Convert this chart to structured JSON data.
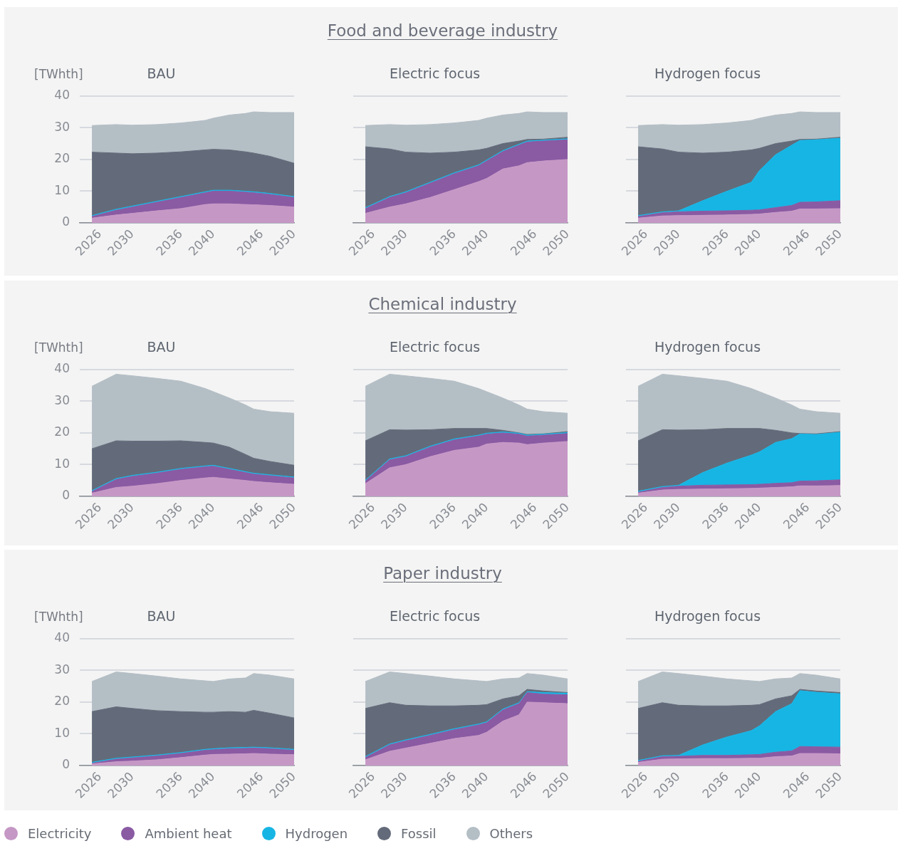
{
  "chart_data": [
    {
      "type": "area",
      "subtitle": "BAU",
      "ylabel": "[TWhth]",
      "stacked": true,
      "grid": "y",
      "legend": "bottom",
      "xlim": [
        2023.5,
        2050
      ],
      "xticks": [
        2026,
        2030,
        2036,
        2040,
        2046,
        2050
      ],
      "ylim": [
        0,
        40
      ],
      "yticks": [
        0,
        10,
        20,
        30,
        40
      ],
      "x": [
        2025,
        2028,
        2030,
        2033,
        2036,
        2039,
        2040,
        2042,
        2044,
        2045,
        2047,
        2050
      ],
      "series": [
        {
          "name": "Electricity",
          "color": "#c597c5",
          "values": [
            1.5,
            2.5,
            3,
            3.8,
            4.5,
            5.8,
            6,
            6,
            5.8,
            5.7,
            5.5,
            5
          ]
        },
        {
          "name": "Ambient heat",
          "color": "#8a5aa3",
          "values": [
            0.5,
            1.5,
            2,
            2.7,
            3.5,
            3.7,
            4,
            4,
            3.9,
            3.8,
            3.5,
            3
          ]
        },
        {
          "name": "Hydrogen",
          "color": "#17b5e4",
          "values": [
            0.3,
            0.3,
            0.3,
            0.3,
            0.3,
            0.3,
            0.3,
            0.3,
            0.3,
            0.3,
            0.3,
            0.3
          ]
        },
        {
          "name": "Fossil",
          "color": "#636b7a",
          "values": [
            20,
            17.7,
            16.5,
            15.2,
            14.1,
            13.2,
            12.9,
            12.7,
            12.4,
            12.2,
            11.7,
            10.5
          ]
        },
        {
          "name": "Others",
          "color": "#b4bec5",
          "values": [
            8.4,
            9,
            9,
            9,
            9.1,
            9.3,
            9.8,
            11,
            12.1,
            13,
            13.8,
            16
          ]
        }
      ]
    },
    {
      "type": "area",
      "title": "Food and beverage industry",
      "subtitle": "Electric focus",
      "stacked": true,
      "grid": "y",
      "tick_labels": "x",
      "xlim": [
        2023.5,
        2050
      ],
      "xticks": [
        2026,
        2030,
        2036,
        2040,
        2046,
        2050
      ],
      "ylim": [
        0,
        40
      ],
      "yticks": [
        0,
        10,
        20,
        30,
        40
      ],
      "x": [
        2025,
        2028,
        2030,
        2033,
        2036,
        2039,
        2040,
        2042,
        2044,
        2045,
        2047,
        2050
      ],
      "series": [
        {
          "color": "#c597c5",
          "values": [
            3,
            5,
            6,
            8,
            10.5,
            13,
            14,
            17,
            18,
            19,
            19.5,
            20
          ]
        },
        {
          "color": "#8a5aa3",
          "values": [
            1.5,
            3,
            3.5,
            4.5,
            5,
            5,
            5.5,
            5.5,
            6.5,
            6.5,
            6.3,
            6.2
          ]
        },
        {
          "color": "#17b5e4",
          "values": [
            0.3,
            0.3,
            0.3,
            0.3,
            0.3,
            0.3,
            0.3,
            0.3,
            0.3,
            0.3,
            0.3,
            0.3
          ]
        },
        {
          "color": "#636b7a",
          "values": [
            19.2,
            15,
            12.5,
            9.2,
            6.5,
            4.7,
            3.7,
            2.2,
            1,
            0.5,
            0.3,
            0.5
          ]
        },
        {
          "color": "#b4bec5",
          "values": [
            6.7,
            7.7,
            8.5,
            9,
            9.2,
            9.3,
            9.5,
            9,
            8.7,
            8.7,
            8.4,
            7.8
          ]
        }
      ]
    },
    {
      "type": "area",
      "subtitle": "Hydrogen focus",
      "stacked": true,
      "grid": "y",
      "tick_labels": "x",
      "xlim": [
        2023.5,
        2050
      ],
      "xticks": [
        2026,
        2030,
        2036,
        2040,
        2046,
        2050
      ],
      "ylim": [
        0,
        40
      ],
      "yticks": [
        0,
        10,
        20,
        30,
        40
      ],
      "x": [
        2025,
        2028,
        2030,
        2033,
        2036,
        2039,
        2040,
        2042,
        2044,
        2045,
        2047,
        2050
      ],
      "series": [
        {
          "color": "#c597c5",
          "values": [
            1.5,
            2.2,
            2.3,
            2.4,
            2.5,
            2.7,
            2.8,
            3.3,
            3.7,
            4.4,
            4.4,
            4.5
          ]
        },
        {
          "color": "#8a5aa3",
          "values": [
            0.5,
            1,
            1.2,
            1.3,
            1.3,
            1.3,
            1.3,
            1.5,
            1.8,
            2.1,
            2.2,
            2.5
          ]
        },
        {
          "color": "#17b5e4",
          "values": [
            0.3,
            0.3,
            0.3,
            3.3,
            6.2,
            8.8,
            12.4,
            16.7,
            19,
            19.5,
            19.6,
            19.7
          ]
        },
        {
          "color": "#636b7a",
          "values": [
            21.7,
            19.8,
            18.5,
            15,
            12.3,
            10.2,
            7,
            3.5,
            1.3,
            0.3,
            0.2,
            0.3
          ]
        },
        {
          "color": "#b4bec5",
          "values": [
            6.7,
            7.7,
            8.5,
            9,
            9.2,
            9.3,
            9.5,
            9,
            8.7,
            8.7,
            8.4,
            7.8
          ]
        }
      ]
    },
    {
      "type": "area",
      "subtitle": "BAU",
      "ylabel": "[TWhth]",
      "stacked": true,
      "grid": "y",
      "xlim": [
        2023.5,
        2050
      ],
      "xticks": [
        2026,
        2030,
        2036,
        2040,
        2046,
        2050
      ],
      "ylim": [
        0,
        40
      ],
      "yticks": [
        0,
        10,
        20,
        30,
        40
      ],
      "x": [
        2025,
        2028,
        2030,
        2033,
        2036,
        2039,
        2040,
        2042,
        2044,
        2045,
        2047,
        2050
      ],
      "series": [
        {
          "color": "#c597c5",
          "values": [
            1,
            2.8,
            3.2,
            4,
            5,
            5.8,
            6,
            5.5,
            5,
            4.7,
            4.3,
            3.8
          ]
        },
        {
          "color": "#8a5aa3",
          "values": [
            0.5,
            2.5,
            3.1,
            3.3,
            3.5,
            3.5,
            3.5,
            3,
            2.5,
            2.3,
            2.2,
            2
          ]
        },
        {
          "color": "#17b5e4",
          "values": [
            0.3,
            0.3,
            0.3,
            0.3,
            0.3,
            0.3,
            0.3,
            0.3,
            0.3,
            0.3,
            0.3,
            0.3
          ]
        },
        {
          "color": "#636b7a",
          "values": [
            13.2,
            11.9,
            10.8,
            9.8,
            8.7,
            7.4,
            7,
            6.7,
            5.4,
            4.7,
            4.2,
            3.7
          ]
        },
        {
          "color": "#b4bec5",
          "values": [
            19.7,
            21,
            20.6,
            19.8,
            18.8,
            17,
            16.2,
            15.5,
            15.6,
            15.5,
            15.7,
            16.4
          ]
        }
      ]
    },
    {
      "type": "area",
      "title": "Chemical industry",
      "subtitle": "Electric focus",
      "stacked": true,
      "grid": "y",
      "tick_labels": "x",
      "xlim": [
        2023.5,
        2050
      ],
      "xticks": [
        2026,
        2030,
        2036,
        2040,
        2046,
        2050
      ],
      "ylim": [
        0,
        40
      ],
      "yticks": [
        0,
        10,
        20,
        30,
        40
      ],
      "x": [
        2025,
        2028,
        2030,
        2033,
        2036,
        2039,
        2040,
        2042,
        2044,
        2045,
        2047,
        2050
      ],
      "series": [
        {
          "color": "#c597c5",
          "values": [
            4,
            9,
            10,
            12.5,
            14.5,
            15.5,
            16.5,
            17,
            16.8,
            16.3,
            16.8,
            17.3
          ]
        },
        {
          "color": "#8a5aa3",
          "values": [
            0.8,
            2.5,
            2.5,
            3,
            3.3,
            3.5,
            3.1,
            3,
            2.8,
            2.7,
            2.5,
            2.5
          ]
        },
        {
          "color": "#17b5e4",
          "values": [
            0.3,
            0.3,
            0.3,
            0.3,
            0.3,
            0.3,
            0.3,
            0.3,
            0.3,
            0.3,
            0.3,
            0.3
          ]
        },
        {
          "color": "#636b7a",
          "values": [
            12.4,
            9.2,
            8.1,
            5.2,
            3.3,
            2.1,
            1.5,
            0.5,
            0.1,
            0.2,
            0.1,
            0.3
          ]
        },
        {
          "color": "#b4bec5",
          "values": [
            17.2,
            17.5,
            17.1,
            16.2,
            14.9,
            12.6,
            11.6,
            10.2,
            8.8,
            8,
            7,
            5.8
          ]
        }
      ]
    },
    {
      "type": "area",
      "subtitle": "Hydrogen focus",
      "stacked": true,
      "grid": "y",
      "tick_labels": "x",
      "xlim": [
        2023.5,
        2050
      ],
      "xticks": [
        2026,
        2030,
        2036,
        2040,
        2046,
        2050
      ],
      "ylim": [
        0,
        40
      ],
      "yticks": [
        0,
        10,
        20,
        30,
        40
      ],
      "x": [
        2025,
        2028,
        2030,
        2033,
        2036,
        2039,
        2040,
        2042,
        2044,
        2045,
        2047,
        2050
      ],
      "series": [
        {
          "color": "#c597c5",
          "values": [
            1,
            2,
            2.2,
            2.3,
            2.4,
            2.5,
            2.6,
            2.8,
            3,
            3.3,
            3.3,
            3.4
          ]
        },
        {
          "color": "#8a5aa3",
          "values": [
            0.3,
            0.8,
            1,
            1.2,
            1.2,
            1.2,
            1.2,
            1.3,
            1.3,
            1.5,
            1.6,
            1.8
          ]
        },
        {
          "color": "#17b5e4",
          "values": [
            0.3,
            0.3,
            0.3,
            4,
            6.9,
            9.3,
            10.2,
            12.9,
            13.9,
            14.9,
            14.6,
            15
          ]
        },
        {
          "color": "#636b7a",
          "values": [
            15.9,
            17.9,
            17.4,
            13.5,
            10.9,
            8.4,
            7.4,
            3.8,
            1.8,
            0.1,
            0.2,
            0.2
          ]
        },
        {
          "color": "#b4bec5",
          "values": [
            17.2,
            17.5,
            17.1,
            16.2,
            14.9,
            12.6,
            11.6,
            10.2,
            8.8,
            7.7,
            7,
            5.8
          ]
        }
      ]
    },
    {
      "type": "area",
      "subtitle": "BAU",
      "ylabel": "[TWhth]",
      "stacked": true,
      "grid": "y",
      "xlim": [
        2023.5,
        2050
      ],
      "xticks": [
        2026,
        2030,
        2036,
        2040,
        2046,
        2050
      ],
      "ylim": [
        0,
        40
      ],
      "yticks": [
        0,
        10,
        20,
        30,
        40
      ],
      "x": [
        2025,
        2028,
        2030,
        2033,
        2036,
        2039,
        2040,
        2042,
        2044,
        2045,
        2047,
        2050
      ],
      "series": [
        {
          "color": "#c597c5",
          "values": [
            0.5,
            1.2,
            1.4,
            1.8,
            2.5,
            3.3,
            3.5,
            3.6,
            3.7,
            3.8,
            3.6,
            3.4
          ]
        },
        {
          "color": "#8a5aa3",
          "values": [
            0.2,
            0.8,
            1,
            1.2,
            1.3,
            1.5,
            1.5,
            1.7,
            1.7,
            1.7,
            1.7,
            1.4
          ]
        },
        {
          "color": "#17b5e4",
          "values": [
            0.3,
            0.3,
            0.3,
            0.3,
            0.3,
            0.3,
            0.3,
            0.3,
            0.3,
            0.3,
            0.3,
            0.3
          ]
        },
        {
          "color": "#636b7a",
          "values": [
            16,
            16.2,
            15.3,
            14,
            12.9,
            11.7,
            11.5,
            11.4,
            11.1,
            11.6,
            10.9,
            9.9
          ]
        },
        {
          "color": "#b4bec5",
          "values": [
            9.5,
            11,
            11,
            10.9,
            10.3,
            9.9,
            9.7,
            10.3,
            10.8,
            11.6,
            12,
            12.3
          ]
        }
      ]
    },
    {
      "type": "area",
      "title": "Paper industry",
      "subtitle": "Electric focus",
      "stacked": true,
      "grid": "y",
      "tick_labels": "x",
      "xlim": [
        2023.5,
        2050
      ],
      "xticks": [
        2026,
        2030,
        2036,
        2040,
        2046,
        2050
      ],
      "ylim": [
        0,
        40
      ],
      "yticks": [
        0,
        10,
        20,
        30,
        40
      ],
      "x": [
        2025,
        2028,
        2030,
        2033,
        2036,
        2039,
        2040,
        2042,
        2044,
        2045,
        2047,
        2050
      ],
      "series": [
        {
          "color": "#c597c5",
          "values": [
            1.8,
            4.5,
            5.5,
            7,
            8.5,
            9.5,
            10.5,
            14,
            16,
            20,
            19.8,
            19.5
          ]
        },
        {
          "color": "#8a5aa3",
          "values": [
            0.7,
            2,
            2.3,
            2.5,
            2.8,
            3.3,
            3,
            3.5,
            3.5,
            3,
            2.7,
            2.8
          ]
        },
        {
          "color": "#17b5e4",
          "values": [
            0.3,
            0.3,
            0.3,
            0.3,
            0.3,
            0.3,
            0.3,
            0.3,
            0.3,
            0.3,
            0.5,
            0.5
          ]
        },
        {
          "color": "#636b7a",
          "values": [
            15.2,
            13,
            10.9,
            9,
            7.2,
            5.9,
            5.4,
            3.2,
            2.2,
            0.7,
            0.5,
            0.2
          ]
        },
        {
          "color": "#b4bec5",
          "values": [
            8.5,
            9.7,
            10,
            9.4,
            8.5,
            7.7,
            7.3,
            6.3,
            5.6,
            5,
            5,
            4.3
          ]
        }
      ]
    },
    {
      "type": "area",
      "subtitle": "Hydrogen focus",
      "stacked": true,
      "grid": "y",
      "tick_labels": "x",
      "xlim": [
        2023.5,
        2050
      ],
      "xticks": [
        2026,
        2030,
        2036,
        2040,
        2046,
        2050
      ],
      "ylim": [
        0,
        40
      ],
      "yticks": [
        0,
        10,
        20,
        30,
        40
      ],
      "x": [
        2025,
        2028,
        2030,
        2033,
        2036,
        2039,
        2040,
        2042,
        2044,
        2045,
        2047,
        2050
      ],
      "series": [
        {
          "color": "#c597c5",
          "values": [
            1,
            2,
            2.1,
            2.2,
            2.2,
            2.3,
            2.3,
            2.8,
            3,
            3.8,
            3.8,
            3.7
          ]
        },
        {
          "color": "#8a5aa3",
          "values": [
            0.3,
            0.8,
            0.8,
            1,
            1,
            1.1,
            1.2,
            1.4,
            1.6,
            2.2,
            2.1,
            2.1
          ]
        },
        {
          "color": "#17b5e4",
          "values": [
            0.3,
            0.3,
            0.3,
            3.3,
            5.8,
            7.6,
            9,
            12.8,
            14.9,
            17.6,
            17.2,
            16.8
          ]
        },
        {
          "color": "#636b7a",
          "values": [
            16.4,
            16.7,
            15.8,
            12.3,
            9.8,
            8,
            6.7,
            4,
            2.5,
            0.4,
            0.4,
            0.4
          ]
        },
        {
          "color": "#b4bec5",
          "values": [
            8.5,
            9.7,
            10,
            9.4,
            8.5,
            7.7,
            7.3,
            6.3,
            5.6,
            5,
            5,
            4.3
          ]
        }
      ]
    }
  ]
}
